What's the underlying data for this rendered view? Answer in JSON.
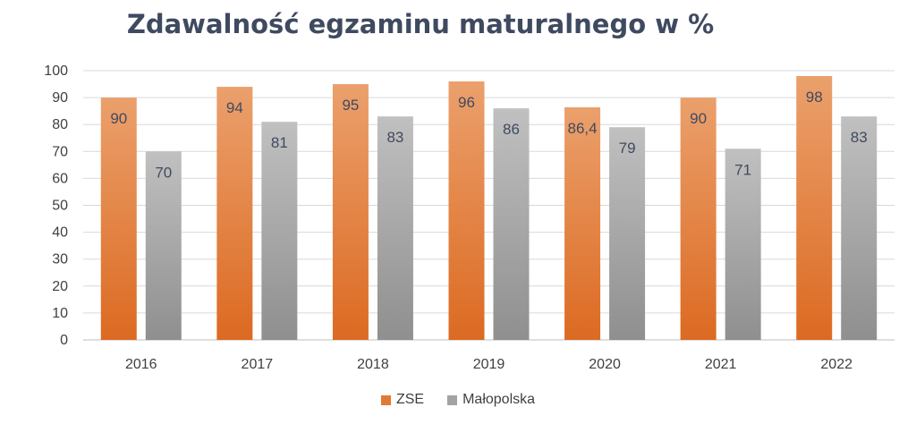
{
  "chart_data": {
    "type": "bar",
    "title": "Zdawalność egzaminu maturalnego w %",
    "categories": [
      "2016",
      "2017",
      "2018",
      "2019",
      "2020",
      "2021",
      "2022"
    ],
    "series": [
      {
        "name": "ZSE",
        "values": [
          90,
          94,
          95,
          96,
          86.4,
          90,
          98
        ],
        "labels": [
          "90",
          "94",
          "95",
          "96",
          "86,4",
          "90",
          "98"
        ],
        "color": "#e07a34"
      },
      {
        "name": "Małopolska",
        "values": [
          70,
          81,
          83,
          86,
          79,
          71,
          83
        ],
        "labels": [
          "70",
          "81",
          "83",
          "86",
          "79",
          "71",
          "83"
        ],
        "color": "#a3a3a3"
      }
    ],
    "ylim": [
      0,
      100
    ],
    "yticks": [
      "0",
      "10",
      "20",
      "30",
      "40",
      "50",
      "60",
      "70",
      "80",
      "90",
      "100"
    ],
    "grid": true,
    "legend": "bottom"
  }
}
